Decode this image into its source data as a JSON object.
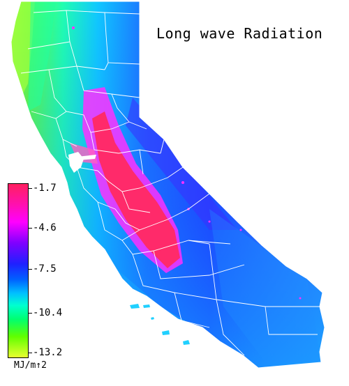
{
  "map": {
    "title": "Long wave Radiation",
    "region": "California",
    "legend": {
      "unit": "MJ/m↑2",
      "ticks": [
        "-1.7",
        "-4.6",
        "-7.5",
        "-10.4",
        "-13.2"
      ],
      "colors_top_to_bottom": [
        "#ff2060",
        "#ff00ff",
        "#7000ff",
        "#1030ff",
        "#00a0ff",
        "#00ffcc",
        "#00ff40",
        "#80ff00",
        "#e0ff20"
      ]
    },
    "colors": {
      "central_valley": "#ff2a6a",
      "valley_edge": "#ff30ff",
      "sierra_slopes": "#3a30ff",
      "interior": "#1f5cff",
      "coast": "#1ea0ff",
      "north_coast": "#3df29a",
      "far_northwest": "#b0ff30",
      "county_lines": "#ffffff"
    }
  }
}
